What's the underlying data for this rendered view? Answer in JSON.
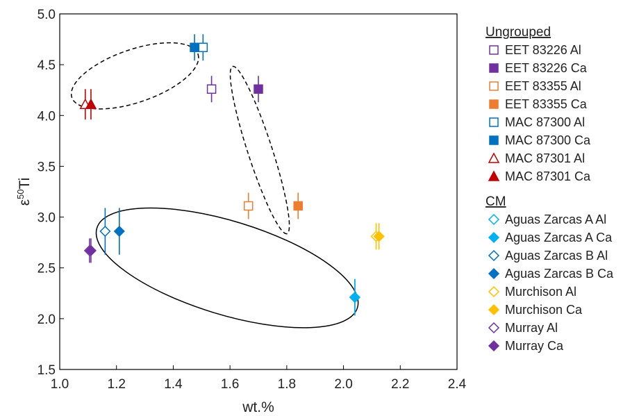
{
  "chart_data": {
    "type": "scatter",
    "xlabel": "wt.%",
    "ylabel": {
      "base": "ε",
      "sup": "50",
      "rest": "Ti"
    },
    "xlim": [
      1.0,
      2.4
    ],
    "ylim": [
      1.5,
      5.0
    ],
    "xticks": [
      "1.0",
      "1.2",
      "1.4",
      "1.6",
      "1.8",
      "2.0",
      "2.2",
      "2.4"
    ],
    "yticks": [
      "1.5",
      "2.0",
      "2.5",
      "3.0",
      "3.5",
      "4.0",
      "4.5",
      "5.0"
    ],
    "grid": false,
    "legend_placement": "right",
    "groups": [
      {
        "name": "Ungrouped",
        "series": [
          {
            "name": "EET 83226 Al",
            "marker": "square",
            "filled": false,
            "color": "#7030a0",
            "x": 1.535,
            "y": 4.26,
            "err": 0.13
          },
          {
            "name": "EET 83226 Ca",
            "marker": "square",
            "filled": true,
            "color": "#7030a0",
            "x": 1.7,
            "y": 4.26,
            "err": 0.13
          },
          {
            "name": "EET 83355 Al",
            "marker": "square",
            "filled": false,
            "color": "#ed7d31",
            "x": 1.665,
            "y": 3.11,
            "err": 0.13
          },
          {
            "name": "EET 83355 Ca",
            "marker": "square",
            "filled": true,
            "color": "#ed7d31",
            "x": 1.84,
            "y": 3.11,
            "err": 0.13
          },
          {
            "name": "MAC 87300 Al",
            "marker": "square",
            "filled": false,
            "color": "#0070c0",
            "x": 1.505,
            "y": 4.67,
            "err": 0.13
          },
          {
            "name": "MAC 87300 Ca",
            "marker": "square",
            "filled": true,
            "color": "#0070c0",
            "x": 1.475,
            "y": 4.67,
            "err": 0.13
          },
          {
            "name": "MAC 87301 Al",
            "marker": "triangle",
            "filled": false,
            "color": "#c00000",
            "x": 1.09,
            "y": 4.11,
            "err": 0.15
          },
          {
            "name": "MAC 87301 Ca",
            "marker": "triangle",
            "filled": true,
            "color": "#c00000",
            "x": 1.11,
            "y": 4.11,
            "err": 0.15
          }
        ]
      },
      {
        "name": "CM",
        "series": [
          {
            "name": "Aguas Zarcas A Al",
            "marker": "diamond",
            "filled": false,
            "color": "#00b0f0",
            "x": 2.04,
            "y": 2.21,
            "err": 0.18
          },
          {
            "name": "Aguas Zarcas A Ca",
            "marker": "diamond",
            "filled": true,
            "color": "#00b0f0",
            "x": 2.04,
            "y": 2.21,
            "err": 0.18
          },
          {
            "name": "Aguas Zarcas B Al",
            "marker": "diamond",
            "filled": false,
            "color": "#0070c0",
            "x": 1.16,
            "y": 2.86,
            "err": 0.23
          },
          {
            "name": "Aguas Zarcas B Ca",
            "marker": "diamond",
            "filled": true,
            "color": "#0070c0",
            "x": 1.21,
            "y": 2.86,
            "err": 0.23
          },
          {
            "name": "Murchison Al",
            "marker": "diamond",
            "filled": false,
            "color": "#ffc000",
            "x": 2.115,
            "y": 2.81,
            "err": 0.13
          },
          {
            "name": "Murchison Ca",
            "marker": "diamond",
            "filled": true,
            "color": "#ffc000",
            "x": 2.125,
            "y": 2.81,
            "err": 0.13
          },
          {
            "name": "Murray Al",
            "marker": "diamond",
            "filled": false,
            "color": "#7030a0",
            "x": 1.105,
            "y": 2.67,
            "err": 0.12
          },
          {
            "name": "Murray Ca",
            "marker": "diamond",
            "filled": true,
            "color": "#7030a0",
            "x": 1.11,
            "y": 2.67,
            "err": 0.12
          }
        ]
      }
    ],
    "ellipses": [
      {
        "name": "mac-group-ellipse",
        "cx": 1.265,
        "cy": 4.39,
        "rx": 0.235,
        "ry": 0.26,
        "rot_deg": -19,
        "style": "dashed"
      },
      {
        "name": "eet-group-ellipse",
        "cx": 1.705,
        "cy": 3.66,
        "rx": 0.31,
        "ry": 0.12,
        "rot_deg": 72,
        "style": "dashed"
      },
      {
        "name": "cm-group-ellipse",
        "cx": 1.59,
        "cy": 2.5,
        "rx": 0.48,
        "ry": 0.46,
        "rot_deg": 17,
        "style": "solid"
      }
    ]
  }
}
